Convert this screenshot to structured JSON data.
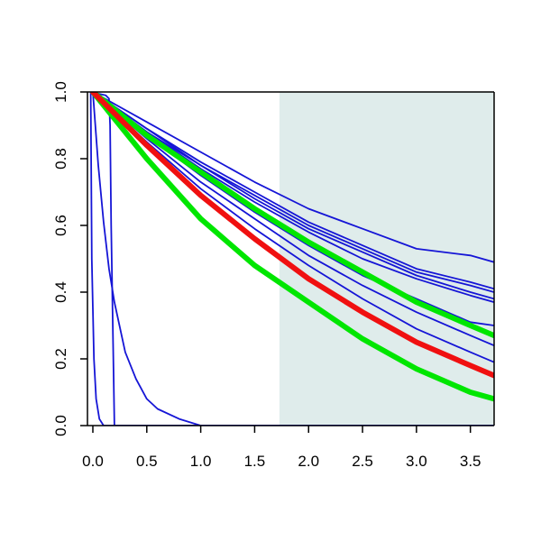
{
  "chart_data": {
    "type": "line",
    "title": "",
    "xlabel": "",
    "ylabel": "",
    "xlim": [
      -0.05,
      3.72
    ],
    "ylim": [
      0.0,
      1.0
    ],
    "x_ticks": [
      "0.0",
      "0.5",
      "1.0",
      "1.5",
      "2.0",
      "2.5",
      "3.0",
      "3.5"
    ],
    "y_ticks": [
      "0.0",
      "0.2",
      "0.4",
      "0.6",
      "0.8",
      "1.0"
    ],
    "shaded_region": {
      "x_from": 1.73,
      "x_to": 3.72,
      "color": "#dfeceb"
    },
    "grid": false,
    "legend": "none",
    "series": [
      {
        "color": "#1515d6",
        "x": [
          0,
          0.5,
          1.0,
          1.5,
          2.0,
          2.5,
          3.0,
          3.5,
          3.72
        ],
        "y": [
          1.0,
          0.91,
          0.82,
          0.73,
          0.65,
          0.59,
          0.53,
          0.51,
          0.49
        ]
      },
      {
        "color": "#1515d6",
        "x": [
          0,
          0.5,
          1.0,
          1.5,
          2.0,
          2.5,
          3.0,
          3.5,
          3.72
        ],
        "y": [
          1.0,
          0.89,
          0.79,
          0.7,
          0.61,
          0.54,
          0.47,
          0.43,
          0.41
        ]
      },
      {
        "color": "#1515d6",
        "x": [
          0,
          0.5,
          1.0,
          1.5,
          2.0,
          2.5,
          3.0,
          3.5,
          3.72
        ],
        "y": [
          1.0,
          0.89,
          0.78,
          0.69,
          0.6,
          0.53,
          0.46,
          0.42,
          0.4
        ]
      },
      {
        "color": "#1515d6",
        "x": [
          0,
          0.5,
          1.0,
          1.5,
          2.0,
          2.5,
          3.0,
          3.5,
          3.72
        ],
        "y": [
          1.0,
          0.88,
          0.78,
          0.68,
          0.59,
          0.52,
          0.45,
          0.4,
          0.38
        ]
      },
      {
        "color": "#1515d6",
        "x": [
          0,
          0.5,
          1.0,
          1.5,
          2.0,
          2.5,
          3.0,
          3.5,
          3.72
        ],
        "y": [
          1.0,
          0.88,
          0.77,
          0.67,
          0.58,
          0.5,
          0.44,
          0.39,
          0.37
        ]
      },
      {
        "color": "#1515d6",
        "x": [
          0,
          0.5,
          1.0,
          1.5,
          2.0,
          2.5,
          3.0,
          3.5,
          3.72
        ],
        "y": [
          1.0,
          0.87,
          0.75,
          0.64,
          0.54,
          0.45,
          0.38,
          0.31,
          0.3
        ]
      },
      {
        "color": "#1515d6",
        "x": [
          0,
          0.5,
          1.0,
          1.5,
          2.0,
          2.5,
          3.0,
          3.5,
          3.72
        ],
        "y": [
          1.0,
          0.86,
          0.73,
          0.62,
          0.51,
          0.42,
          0.34,
          0.27,
          0.24
        ]
      },
      {
        "color": "#1515d6",
        "x": [
          0,
          0.5,
          1.0,
          1.5,
          2.0,
          2.5,
          3.0,
          3.5,
          3.72
        ],
        "y": [
          1.0,
          0.85,
          0.71,
          0.59,
          0.48,
          0.38,
          0.29,
          0.22,
          0.19
        ]
      },
      {
        "color": "#1515d6",
        "x": [
          0,
          0.05,
          0.1,
          0.15,
          0.2,
          0.3,
          0.4,
          0.5,
          0.6,
          0.8,
          1.0,
          3.72
        ],
        "y": [
          1.0,
          0.78,
          0.61,
          0.47,
          0.37,
          0.22,
          0.14,
          0.08,
          0.05,
          0.02,
          0.0,
          0.0
        ]
      },
      {
        "color": "#1515d6",
        "x": [
          -0.02,
          -0.01,
          0.0,
          0.01,
          0.03,
          0.06,
          0.1,
          3.72
        ],
        "y": [
          1.0,
          0.5,
          0.35,
          0.2,
          0.08,
          0.02,
          0.0,
          0.0
        ]
      },
      {
        "color": "#1515d6",
        "x": [
          0.0,
          0.05,
          0.12,
          0.15,
          0.16,
          0.17,
          0.2,
          3.72
        ],
        "y": [
          1.0,
          0.995,
          0.99,
          0.98,
          0.9,
          0.6,
          0.0,
          0.0
        ]
      },
      {
        "color": "#00e600",
        "x": [
          0,
          0.5,
          1.0,
          1.5,
          2.0,
          2.5,
          3.0,
          3.5,
          3.72
        ],
        "y": [
          1.0,
          0.87,
          0.76,
          0.65,
          0.55,
          0.46,
          0.37,
          0.3,
          0.27
        ]
      },
      {
        "color": "#00e600",
        "x": [
          0,
          0.5,
          1.0,
          1.5,
          2.0,
          2.5,
          3.0,
          3.5,
          3.72
        ],
        "y": [
          1.0,
          0.8,
          0.62,
          0.48,
          0.37,
          0.26,
          0.17,
          0.1,
          0.08
        ]
      },
      {
        "color": "#f01010",
        "x": [
          0,
          0.5,
          1.0,
          1.5,
          2.0,
          2.5,
          3.0,
          3.5,
          3.72
        ],
        "y": [
          1.0,
          0.84,
          0.69,
          0.56,
          0.44,
          0.34,
          0.25,
          0.18,
          0.15
        ]
      }
    ]
  }
}
